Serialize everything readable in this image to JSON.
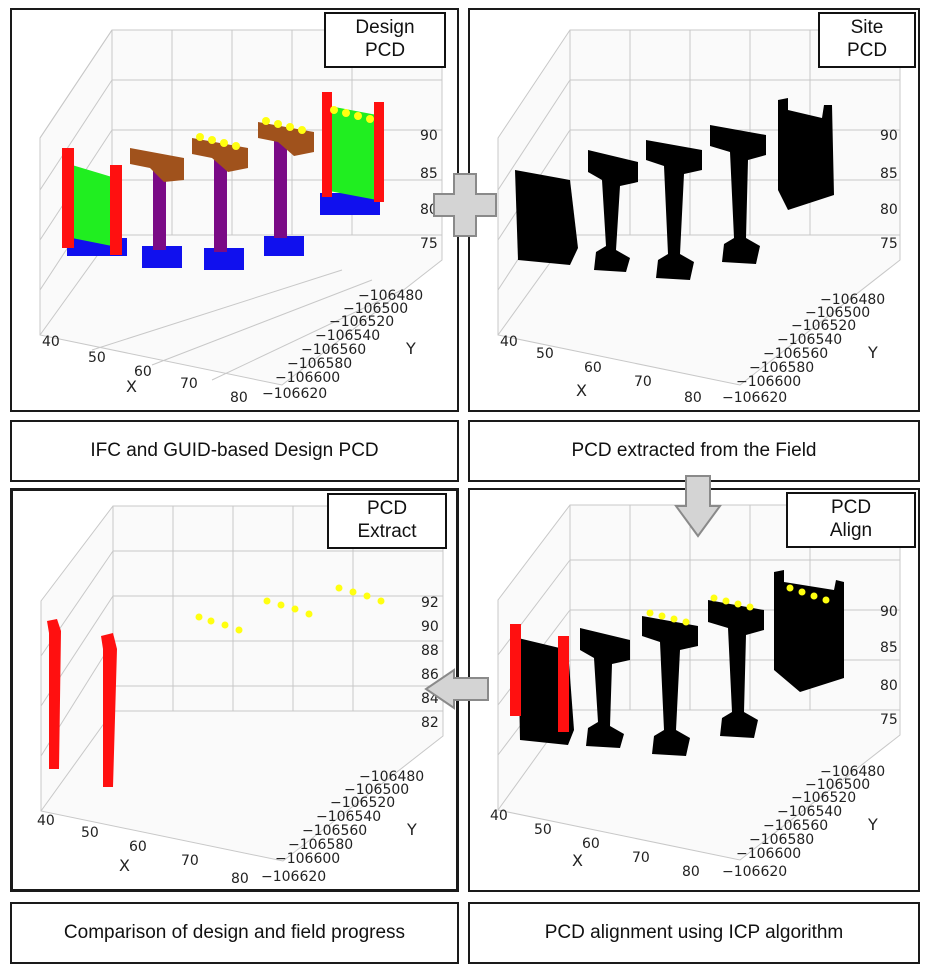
{
  "panels": {
    "design": {
      "tag_line1": "Design",
      "tag_line2": "PCD",
      "caption": "IFC and GUID-based Design PCD"
    },
    "site": {
      "tag_line1": "Site",
      "tag_line2": "PCD",
      "caption": "PCD extracted from the Field"
    },
    "extract": {
      "tag_line1": "PCD",
      "tag_line2": "Extract",
      "caption": "Comparison of design and field progress"
    },
    "align": {
      "tag_line1": "PCD",
      "tag_line2": "Align",
      "caption": "PCD alignment using ICP algorithm"
    }
  },
  "axes": {
    "x_label": "X",
    "y_label": "Y",
    "x_ticks": [
      "40",
      "50",
      "60",
      "70",
      "80"
    ],
    "y_ticks": [
      "−106480",
      "−106500",
      "−106520",
      "−106540",
      "−106560",
      "−106580",
      "−106600",
      "−106620"
    ],
    "z_ticks_main": [
      "90",
      "85",
      "80",
      "75"
    ],
    "z_ticks_extract": [
      "92",
      "90",
      "88",
      "86",
      "84",
      "82"
    ]
  },
  "colors": {
    "pier_cap": "#a0521c",
    "column": "#7a0a86",
    "footing": "#1010ee",
    "wall": "#20ee20",
    "edge_column": "#ff1010",
    "bearing": "#ffff10",
    "site_points": "#000000"
  }
}
